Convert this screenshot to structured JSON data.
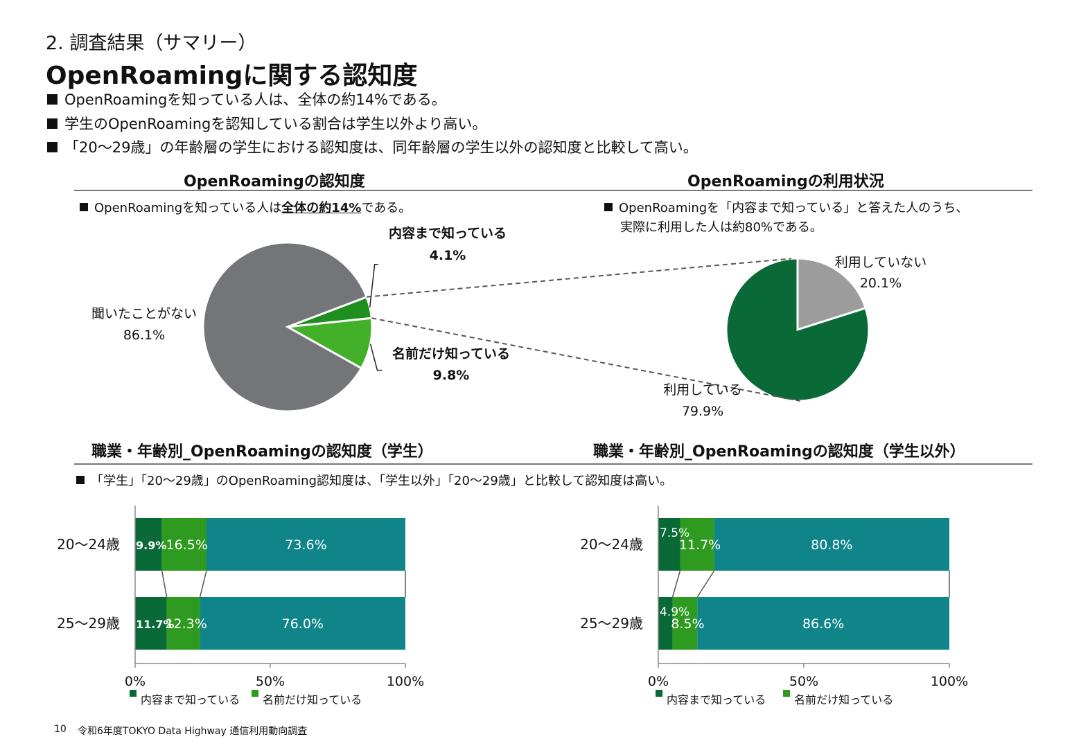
{
  "section_label": "2. 調査結果（サマリー）",
  "main_title": "OpenRoamingに関する認知度",
  "summary_bullets": [
    "OpenRoamingを知っている人は、全体の約14%である。",
    "学生のOpenRoamingを認知している割合は学生以外より高い。",
    "「20～29歳」の年齢層の学生における認知度は、同年齢層の学生以外の認知度と比較して高い。"
  ],
  "pie1": {
    "title": "OpenRoamingの認知度",
    "note_prefix": "OpenRoamingを知っている人は",
    "note_emph": "全体の約14%",
    "note_suffix": "である。"
  },
  "pie2": {
    "title": "OpenRoamingの利用状況",
    "note_line1": "OpenRoamingを「内容まで知っている」と答えた人のうち、",
    "note_line2": "実際に利用した人は約80%である。"
  },
  "bar_section": {
    "title_left": "職業・年齢別_OpenRoamingの認知度（学生）",
    "title_right": "職業・年齢別_OpenRoamingの認知度（学生以外）",
    "note": "「学生」「20～29歳」のOpenRoaming認知度は、「学生以外」「20～29歳」と比較して認知度は高い。"
  },
  "footer": {
    "page": "10",
    "text": "令和6年度TOKYO Data Highway 通信利用動向調査"
  },
  "colors": {
    "gray": "#737578",
    "dark_green": "#1e8f1e",
    "light_green": "#43b02a",
    "forest": "#0a6a37",
    "light_gray": "#9c9c9c",
    "teal": "#108589",
    "bar_dark": "#0a6a37",
    "bar_mid": "#2f9a20"
  },
  "chart_data": [
    {
      "type": "pie",
      "title": "OpenRoamingの認知度",
      "slices": [
        {
          "label": "内容まで知っている",
          "value": 4.1,
          "display": "4.1%"
        },
        {
          "label": "名前だけ知っている",
          "value": 9.8,
          "display": "9.8%"
        },
        {
          "label": "聞いたことがない",
          "value": 86.1,
          "display": "86.1%"
        }
      ]
    },
    {
      "type": "pie",
      "title": "OpenRoamingの利用状況",
      "slices": [
        {
          "label": "利用していない",
          "value": 20.1,
          "display": "20.1%"
        },
        {
          "label": "利用している",
          "value": 79.9,
          "display": "79.9%"
        }
      ]
    },
    {
      "type": "bar",
      "stacked": true,
      "orientation": "horizontal",
      "title": "職業・年齢別_OpenRoamingの認知度（学生）",
      "categories": [
        "20～24歳",
        "25～29歳"
      ],
      "series": [
        {
          "name": "内容まで知っている",
          "values": [
            9.9,
            11.7
          ]
        },
        {
          "name": "名前だけ知っている",
          "values": [
            16.5,
            12.3
          ]
        },
        {
          "values": [
            73.6,
            76.0
          ]
        }
      ],
      "xlim": [
        0,
        100
      ],
      "xticks": [
        "0%",
        "50%",
        "100%"
      ]
    },
    {
      "type": "bar",
      "stacked": true,
      "orientation": "horizontal",
      "title": "職業・年齢別_OpenRoamingの認知度（学生以外）",
      "categories": [
        "20～24歳",
        "25～29歳"
      ],
      "series": [
        {
          "name": "内容まで知っている",
          "values": [
            7.5,
            4.9
          ]
        },
        {
          "name": "名前だけ知っている",
          "values": [
            11.7,
            8.5
          ]
        },
        {
          "values": [
            80.8,
            86.6
          ]
        }
      ],
      "xlim": [
        0,
        100
      ],
      "xticks": [
        "0%",
        "50%",
        "100%"
      ]
    }
  ]
}
